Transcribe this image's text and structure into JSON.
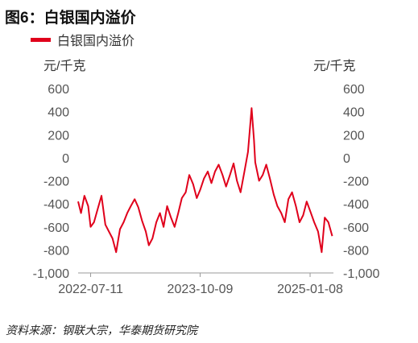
{
  "figure": {
    "title": "图6：白银国内溢价",
    "source": "资料来源：钢联大宗，华泰期货研究院"
  },
  "chart_data": {
    "type": "line",
    "unit_left": "元/千克",
    "unit_right": "元/千克",
    "ylim": [
      -1000,
      600
    ],
    "yticks": [
      "600",
      "400",
      "200",
      "0",
      "-200",
      "-400",
      "-600",
      "-800",
      "-1,000"
    ],
    "ytick_values": [
      600,
      400,
      200,
      0,
      -200,
      -400,
      -600,
      -800,
      -1000
    ],
    "xticks": [
      "2022-07-11",
      "2023-10-09",
      "2025-01-08"
    ],
    "xtick_dates": [
      "2022-07-11",
      "2023-10-09",
      "2025-01-08"
    ],
    "xlim": [
      "2022-05-20",
      "2025-04-15"
    ],
    "grid": false,
    "legend_position": "top-left",
    "colors": {
      "series": "#e0001b"
    },
    "series": [
      {
        "name": "白银国内溢价",
        "points": [
          [
            "2022-05-20",
            -380
          ],
          [
            "2022-06-01",
            -480
          ],
          [
            "2022-06-15",
            -330
          ],
          [
            "2022-07-01",
            -420
          ],
          [
            "2022-07-11",
            -600
          ],
          [
            "2022-07-25",
            -560
          ],
          [
            "2022-08-10",
            -440
          ],
          [
            "2022-08-25",
            -330
          ],
          [
            "2022-09-10",
            -580
          ],
          [
            "2022-09-25",
            -640
          ],
          [
            "2022-10-10",
            -700
          ],
          [
            "2022-10-25",
            -820
          ],
          [
            "2022-11-10",
            -620
          ],
          [
            "2022-11-25",
            -560
          ],
          [
            "2022-12-10",
            -480
          ],
          [
            "2022-12-25",
            -420
          ],
          [
            "2023-01-10",
            -360
          ],
          [
            "2023-01-25",
            -430
          ],
          [
            "2023-02-10",
            -550
          ],
          [
            "2023-02-25",
            -640
          ],
          [
            "2023-03-10",
            -760
          ],
          [
            "2023-03-25",
            -700
          ],
          [
            "2023-04-10",
            -560
          ],
          [
            "2023-04-25",
            -480
          ],
          [
            "2023-05-10",
            -600
          ],
          [
            "2023-05-25",
            -420
          ],
          [
            "2023-06-10",
            -520
          ],
          [
            "2023-06-25",
            -600
          ],
          [
            "2023-07-10",
            -480
          ],
          [
            "2023-07-25",
            -350
          ],
          [
            "2023-08-10",
            -300
          ],
          [
            "2023-08-25",
            -150
          ],
          [
            "2023-09-10",
            -230
          ],
          [
            "2023-09-25",
            -350
          ],
          [
            "2023-10-09",
            -280
          ],
          [
            "2023-10-25",
            -180
          ],
          [
            "2023-11-10",
            -120
          ],
          [
            "2023-11-25",
            -220
          ],
          [
            "2023-12-10",
            -120
          ],
          [
            "2023-12-25",
            -60
          ],
          [
            "2024-01-10",
            -150
          ],
          [
            "2024-01-25",
            -250
          ],
          [
            "2024-02-10",
            -150
          ],
          [
            "2024-02-25",
            -50
          ],
          [
            "2024-03-10",
            -200
          ],
          [
            "2024-03-25",
            -300
          ],
          [
            "2024-04-10",
            -120
          ],
          [
            "2024-04-25",
            50
          ],
          [
            "2024-05-10",
            430
          ],
          [
            "2024-05-20",
            150
          ],
          [
            "2024-05-25",
            -40
          ],
          [
            "2024-06-10",
            -200
          ],
          [
            "2024-06-25",
            -150
          ],
          [
            "2024-07-10",
            -60
          ],
          [
            "2024-07-25",
            -180
          ],
          [
            "2024-08-10",
            -320
          ],
          [
            "2024-08-25",
            -420
          ],
          [
            "2024-09-10",
            -480
          ],
          [
            "2024-09-25",
            -560
          ],
          [
            "2024-10-10",
            -360
          ],
          [
            "2024-10-25",
            -300
          ],
          [
            "2024-11-10",
            -420
          ],
          [
            "2024-11-25",
            -560
          ],
          [
            "2024-12-10",
            -500
          ],
          [
            "2024-12-25",
            -380
          ],
          [
            "2025-01-08",
            -460
          ],
          [
            "2025-01-25",
            -560
          ],
          [
            "2025-02-10",
            -640
          ],
          [
            "2025-02-25",
            -820
          ],
          [
            "2025-03-10",
            -520
          ],
          [
            "2025-03-25",
            -560
          ],
          [
            "2025-04-10",
            -680
          ]
        ]
      }
    ]
  }
}
